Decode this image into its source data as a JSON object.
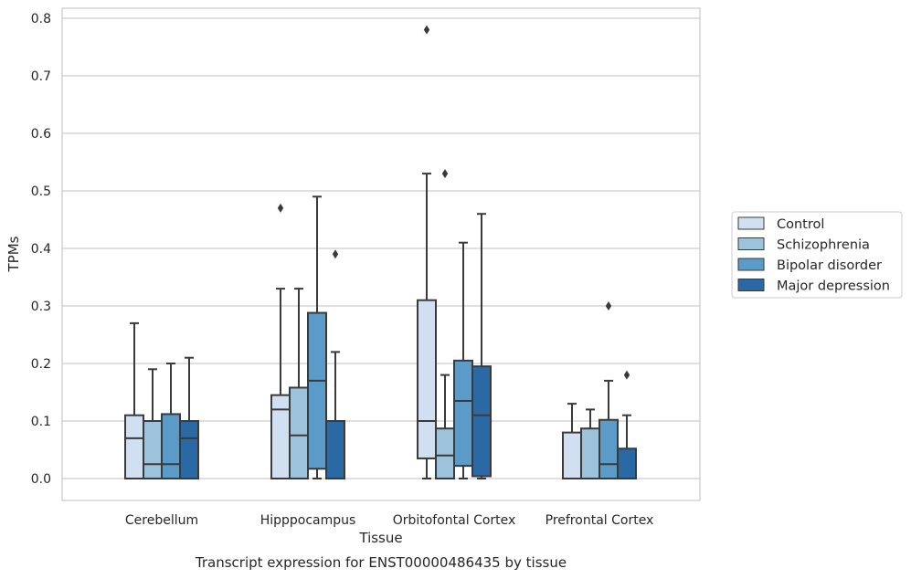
{
  "chart_data": {
    "type": "boxplot",
    "title": "Transcript expression for ENST00000486435 by tissue",
    "xlabel": "Tissue",
    "ylabel": "TPMs",
    "ylim": [
      -0.04,
      0.82
    ],
    "yticks": [
      0.0,
      0.1,
      0.2,
      0.3,
      0.4,
      0.5,
      0.6,
      0.7,
      0.8
    ],
    "ytick_labels": [
      "0.0",
      "0.1",
      "0.2",
      "0.3",
      "0.4",
      "0.5",
      "0.6",
      "0.7",
      "0.8"
    ],
    "grid": "horizontal",
    "legend_position": "right",
    "categories": [
      "Cerebellum",
      "Hipppocampus",
      "Orbitofontal Cortex",
      "Prefrontal Cortex"
    ],
    "series": [
      {
        "name": "Control",
        "color": "#d0e0f0",
        "boxes": [
          {
            "whislo": 0.0,
            "q1": 0.0,
            "med": 0.07,
            "q3": 0.11,
            "whishi": 0.27,
            "fliers": []
          },
          {
            "whislo": 0.0,
            "q1": 0.0,
            "med": 0.12,
            "q3": 0.145,
            "whishi": 0.33,
            "fliers": [
              0.47
            ]
          },
          {
            "whislo": 0.0,
            "q1": 0.035,
            "med": 0.1,
            "q3": 0.31,
            "whishi": 0.53,
            "fliers": [
              0.78
            ]
          },
          {
            "whislo": 0.0,
            "q1": 0.0,
            "med": 0.0,
            "q3": 0.08,
            "whishi": 0.13,
            "fliers": []
          }
        ]
      },
      {
        "name": "Schizophrenia",
        "color": "#9dc3dc",
        "boxes": [
          {
            "whislo": 0.0,
            "q1": 0.0,
            "med": 0.025,
            "q3": 0.1,
            "whishi": 0.19,
            "fliers": []
          },
          {
            "whislo": 0.0,
            "q1": 0.0,
            "med": 0.075,
            "q3": 0.158,
            "whishi": 0.33,
            "fliers": []
          },
          {
            "whislo": 0.0,
            "q1": 0.0,
            "med": 0.04,
            "q3": 0.087,
            "whishi": 0.18,
            "fliers": [
              0.53
            ]
          },
          {
            "whislo": 0.0,
            "q1": 0.0,
            "med": 0.0,
            "q3": 0.087,
            "whishi": 0.12,
            "fliers": []
          }
        ]
      },
      {
        "name": "Bipolar disorder",
        "color": "#5a9bc7",
        "boxes": [
          {
            "whislo": 0.0,
            "q1": 0.0,
            "med": 0.025,
            "q3": 0.112,
            "whishi": 0.2,
            "fliers": []
          },
          {
            "whislo": 0.0,
            "q1": 0.017,
            "med": 0.17,
            "q3": 0.288,
            "whishi": 0.49,
            "fliers": []
          },
          {
            "whislo": 0.0,
            "q1": 0.022,
            "med": 0.135,
            "q3": 0.205,
            "whishi": 0.41,
            "fliers": []
          },
          {
            "whislo": 0.0,
            "q1": 0.0,
            "med": 0.025,
            "q3": 0.102,
            "whishi": 0.17,
            "fliers": [
              0.3
            ]
          }
        ]
      },
      {
        "name": "Major depression",
        "color": "#2a69a4",
        "boxes": [
          {
            "whislo": 0.0,
            "q1": 0.0,
            "med": 0.07,
            "q3": 0.1,
            "whishi": 0.21,
            "fliers": []
          },
          {
            "whislo": 0.0,
            "q1": 0.0,
            "med": 0.0,
            "q3": 0.1,
            "whishi": 0.22,
            "fliers": [
              0.39
            ]
          },
          {
            "whislo": 0.0,
            "q1": 0.004,
            "med": 0.11,
            "q3": 0.195,
            "whishi": 0.46,
            "fliers": []
          },
          {
            "whislo": 0.0,
            "q1": 0.0,
            "med": 0.0,
            "q3": 0.052,
            "whishi": 0.11,
            "fliers": [
              0.18
            ]
          }
        ]
      }
    ]
  }
}
